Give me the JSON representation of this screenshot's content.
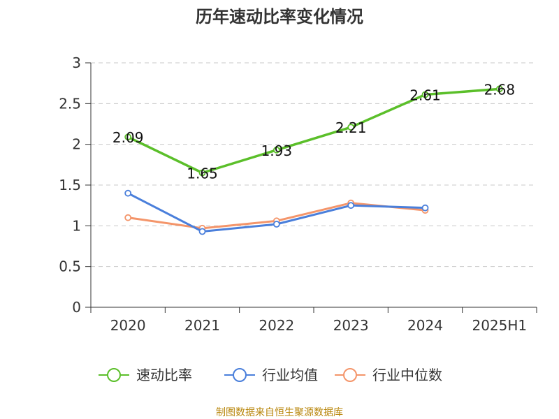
{
  "title": "历年速动比率变化情况",
  "source": "制图数据来自恒生聚源数据库",
  "chart_data": {
    "type": "line",
    "categories": [
      "2020",
      "2021",
      "2022",
      "2023",
      "2024",
      "2025H1"
    ],
    "ylim": [
      0,
      3
    ],
    "yticks": [
      "0",
      "0.5",
      "1",
      "1.5",
      "2",
      "2.5",
      "3"
    ],
    "grid": true,
    "legend_position": "bottom",
    "series": [
      {
        "name": "速动比率",
        "color": "#5bbf2a",
        "values": [
          2.09,
          1.65,
          1.93,
          2.21,
          2.61,
          2.68
        ],
        "labels": [
          "2.09",
          "1.65",
          "1.93",
          "2.21",
          "2.61",
          "2.68"
        ]
      },
      {
        "name": "行业均值",
        "color": "#4a7fdb",
        "values": [
          1.4,
          0.93,
          1.02,
          1.25,
          1.22,
          null
        ]
      },
      {
        "name": "行业中位数",
        "color": "#f4956a",
        "values": [
          1.1,
          0.97,
          1.06,
          1.28,
          1.19,
          null
        ]
      }
    ]
  }
}
